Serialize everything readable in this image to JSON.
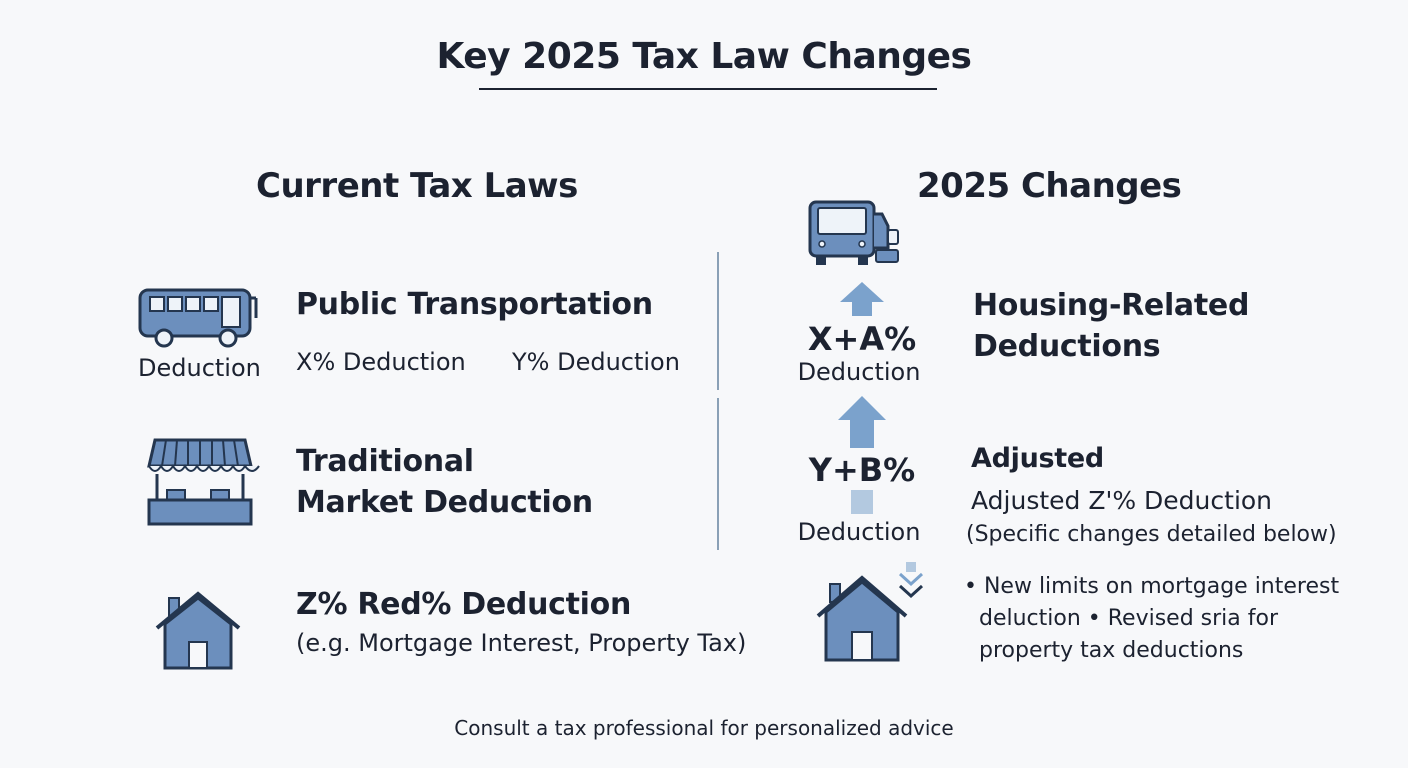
{
  "title": "Key 2025 Tax Law Changes",
  "left": {
    "heading": "Current Tax Laws",
    "items": [
      {
        "icon": "bus-icon",
        "icon_caption": "Deduction",
        "heading": "Public Transportation",
        "values": [
          "X% Deduction",
          "Y% Deduction"
        ]
      },
      {
        "icon": "market-stall-icon",
        "heading_lines": [
          "Traditional",
          "Market Deduction"
        ]
      },
      {
        "icon": "house-icon",
        "heading": "Z% Red% Deduction",
        "text": "(e.g. Mortgage Interest, Property Tax)"
      }
    ]
  },
  "right": {
    "heading": "2025 Changes",
    "arrows": [
      {
        "value": "X+A%",
        "caption": "Deduction",
        "direction": "up"
      },
      {
        "value": "Y+B%",
        "caption": "Deduction",
        "direction": "up"
      }
    ],
    "items": [
      {
        "heading_lines": [
          "Housing-Related",
          "Deductions"
        ]
      },
      {
        "heading": "Adjusted",
        "text": "Adjusted Z'% Deduction",
        "note": "(Specific changes detailed below)"
      },
      {
        "icon": "house-down-icon",
        "bullet_lines": [
          "• New limits on mortgage interest",
          "deluction • Revised sria for",
          "property tax deductions"
        ]
      }
    ]
  },
  "footer": "Consult a tax professional for personalized advice",
  "colors": {
    "icon_fill": "#6c8fbd",
    "icon_stroke": "#24364f",
    "arrow": "#7ba2cc",
    "arrow_light": "#b3c9e0",
    "text": "#1c2230"
  }
}
